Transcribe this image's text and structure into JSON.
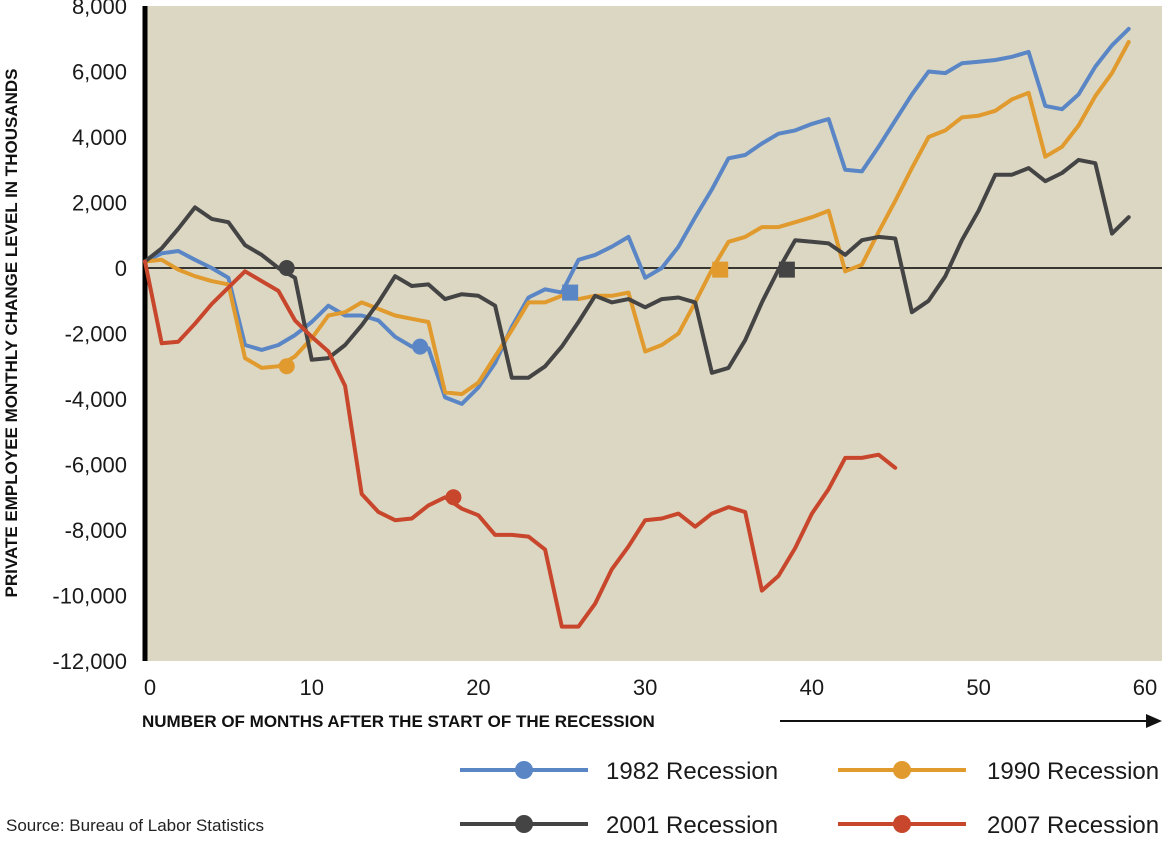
{
  "chart_data": {
    "type": "line",
    "xlabel": "NUMBER OF MONTHS AFTER THE START OF THE RECESSION",
    "ylabel": "PRIVATE EMPLOYEE MONTHLY CHANGE LEVEL IN THOUSANDS",
    "xlim": [
      0,
      61
    ],
    "ylim": [
      -12000,
      8000
    ],
    "xticks": [
      0,
      10,
      20,
      30,
      40,
      50,
      60
    ],
    "yticks": [
      8000,
      6000,
      4000,
      2000,
      0,
      -2000,
      -4000,
      -6000,
      -8000,
      -10000,
      -12000
    ],
    "ytick_labels": [
      "8,000",
      "6,000",
      "4,000",
      "2,000",
      "0",
      "-2,000",
      "-4,000",
      "-6,000",
      "-8,000",
      "-10,000",
      "-12,000"
    ],
    "xtick_labels": [
      "0",
      "10",
      "20",
      "30",
      "40",
      "50",
      "60"
    ],
    "plot_background": "#dcd7c3",
    "grid": false,
    "legend_position": "bottom",
    "source": "Source:  Bureau of Labor Statistics",
    "series": [
      {
        "name": "1982 Recession",
        "color": "#5a86c6",
        "circle_marker": [
          16.5,
          -2400
        ],
        "square_marker": [
          25.5,
          -750
        ],
        "points": [
          [
            0,
            200
          ],
          [
            1,
            450
          ],
          [
            2,
            520
          ],
          [
            3,
            250
          ],
          [
            4,
            0
          ],
          [
            5,
            -300
          ],
          [
            6,
            -2350
          ],
          [
            7,
            -2500
          ],
          [
            8,
            -2350
          ],
          [
            9,
            -2050
          ],
          [
            10,
            -1650
          ],
          [
            11,
            -1150
          ],
          [
            12,
            -1450
          ],
          [
            13,
            -1450
          ],
          [
            14,
            -1600
          ],
          [
            15,
            -2100
          ],
          [
            16,
            -2400
          ],
          [
            17,
            -2450
          ],
          [
            18,
            -3950
          ],
          [
            19,
            -4150
          ],
          [
            20,
            -3650
          ],
          [
            21,
            -2900
          ],
          [
            22,
            -1800
          ],
          [
            23,
            -900
          ],
          [
            24,
            -650
          ],
          [
            25,
            -750
          ],
          [
            26,
            250
          ],
          [
            27,
            400
          ],
          [
            28,
            650
          ],
          [
            29,
            950
          ],
          [
            30,
            -300
          ],
          [
            31,
            0
          ],
          [
            32,
            650
          ],
          [
            33,
            1550
          ],
          [
            34,
            2400
          ],
          [
            35,
            3350
          ],
          [
            36,
            3450
          ],
          [
            37,
            3800
          ],
          [
            38,
            4100
          ],
          [
            39,
            4200
          ],
          [
            40,
            4400
          ],
          [
            41,
            4550
          ],
          [
            42,
            3000
          ],
          [
            43,
            2950
          ],
          [
            44,
            3700
          ],
          [
            45,
            4500
          ],
          [
            46,
            5300
          ],
          [
            47,
            6000
          ],
          [
            48,
            5950
          ],
          [
            49,
            6250
          ],
          [
            50,
            6300
          ],
          [
            51,
            6350
          ],
          [
            52,
            6450
          ],
          [
            53,
            6600
          ],
          [
            54,
            4950
          ],
          [
            55,
            4850
          ],
          [
            56,
            5300
          ],
          [
            57,
            6150
          ],
          [
            58,
            6800
          ],
          [
            59,
            7300
          ]
        ]
      },
      {
        "name": "1990 Recession",
        "color": "#e19a2d",
        "circle_marker": [
          8.5,
          -3000
        ],
        "square_marker": [
          34.5,
          -50
        ],
        "points": [
          [
            0,
            200
          ],
          [
            1,
            250
          ],
          [
            2,
            -50
          ],
          [
            3,
            -250
          ],
          [
            4,
            -400
          ],
          [
            5,
            -500
          ],
          [
            6,
            -2750
          ],
          [
            7,
            -3050
          ],
          [
            8,
            -3000
          ],
          [
            9,
            -2700
          ],
          [
            10,
            -2150
          ],
          [
            11,
            -1450
          ],
          [
            12,
            -1350
          ],
          [
            13,
            -1050
          ],
          [
            14,
            -1250
          ],
          [
            15,
            -1450
          ],
          [
            16,
            -1550
          ],
          [
            17,
            -1650
          ],
          [
            18,
            -3800
          ],
          [
            19,
            -3850
          ],
          [
            20,
            -3500
          ],
          [
            21,
            -2700
          ],
          [
            22,
            -1900
          ],
          [
            23,
            -1050
          ],
          [
            24,
            -1050
          ],
          [
            25,
            -850
          ],
          [
            26,
            -950
          ],
          [
            27,
            -850
          ],
          [
            28,
            -850
          ],
          [
            29,
            -750
          ],
          [
            30,
            -2550
          ],
          [
            31,
            -2350
          ],
          [
            32,
            -2000
          ],
          [
            33,
            -1050
          ],
          [
            34,
            -50
          ],
          [
            35,
            800
          ],
          [
            36,
            950
          ],
          [
            37,
            1250
          ],
          [
            38,
            1250
          ],
          [
            39,
            1400
          ],
          [
            40,
            1550
          ],
          [
            41,
            1750
          ],
          [
            42,
            -100
          ],
          [
            43,
            100
          ],
          [
            44,
            1100
          ],
          [
            45,
            2050
          ],
          [
            46,
            3050
          ],
          [
            47,
            4000
          ],
          [
            48,
            4200
          ],
          [
            49,
            4600
          ],
          [
            50,
            4650
          ],
          [
            51,
            4800
          ],
          [
            52,
            5150
          ],
          [
            53,
            5350
          ],
          [
            54,
            3400
          ],
          [
            55,
            3700
          ],
          [
            56,
            4350
          ],
          [
            57,
            5250
          ],
          [
            58,
            5950
          ],
          [
            59,
            6900
          ]
        ]
      },
      {
        "name": "2001 Recession",
        "color": "#444444",
        "circle_marker": [
          8.5,
          0
        ],
        "square_marker": [
          38.5,
          -50
        ],
        "points": [
          [
            0,
            200
          ],
          [
            1,
            600
          ],
          [
            2,
            1200
          ],
          [
            3,
            1850
          ],
          [
            4,
            1500
          ],
          [
            5,
            1400
          ],
          [
            6,
            700
          ],
          [
            7,
            400
          ],
          [
            8,
            0
          ],
          [
            9,
            -300
          ],
          [
            10,
            -2800
          ],
          [
            11,
            -2750
          ],
          [
            12,
            -2350
          ],
          [
            13,
            -1750
          ],
          [
            14,
            -1050
          ],
          [
            15,
            -250
          ],
          [
            16,
            -550
          ],
          [
            17,
            -500
          ],
          [
            18,
            -950
          ],
          [
            19,
            -800
          ],
          [
            20,
            -850
          ],
          [
            21,
            -1150
          ],
          [
            22,
            -3350
          ],
          [
            23,
            -3350
          ],
          [
            24,
            -3000
          ],
          [
            25,
            -2400
          ],
          [
            26,
            -1650
          ],
          [
            27,
            -850
          ],
          [
            28,
            -1050
          ],
          [
            29,
            -950
          ],
          [
            30,
            -1200
          ],
          [
            31,
            -950
          ],
          [
            32,
            -900
          ],
          [
            33,
            -1050
          ],
          [
            34,
            -3200
          ],
          [
            35,
            -3050
          ],
          [
            36,
            -2200
          ],
          [
            37,
            -1050
          ],
          [
            38,
            -50
          ],
          [
            39,
            850
          ],
          [
            40,
            800
          ],
          [
            41,
            750
          ],
          [
            42,
            400
          ],
          [
            43,
            850
          ],
          [
            44,
            950
          ],
          [
            45,
            900
          ],
          [
            46,
            -1350
          ],
          [
            47,
            -1000
          ],
          [
            48,
            -250
          ],
          [
            49,
            850
          ],
          [
            50,
            1750
          ],
          [
            51,
            2850
          ],
          [
            52,
            2850
          ],
          [
            53,
            3050
          ],
          [
            54,
            2650
          ],
          [
            55,
            2900
          ],
          [
            56,
            3300
          ],
          [
            57,
            3200
          ],
          [
            58,
            1050
          ],
          [
            59,
            1550
          ]
        ]
      },
      {
        "name": "2007 Recession",
        "color": "#c8462b",
        "circle_marker": [
          18.5,
          -7000
        ],
        "points": [
          [
            0,
            200
          ],
          [
            1,
            -2300
          ],
          [
            2,
            -2250
          ],
          [
            3,
            -1700
          ],
          [
            4,
            -1100
          ],
          [
            5,
            -600
          ],
          [
            6,
            -100
          ],
          [
            7,
            -400
          ],
          [
            8,
            -700
          ],
          [
            9,
            -1600
          ],
          [
            10,
            -2100
          ],
          [
            11,
            -2550
          ],
          [
            12,
            -3600
          ],
          [
            13,
            -6900
          ],
          [
            14,
            -7450
          ],
          [
            15,
            -7700
          ],
          [
            16,
            -7650
          ],
          [
            17,
            -7250
          ],
          [
            18,
            -7000
          ],
          [
            19,
            -7350
          ],
          [
            20,
            -7550
          ],
          [
            21,
            -8150
          ],
          [
            22,
            -8150
          ],
          [
            23,
            -8200
          ],
          [
            24,
            -8600
          ],
          [
            25,
            -10950
          ],
          [
            26,
            -10950
          ],
          [
            27,
            -10250
          ],
          [
            28,
            -9200
          ],
          [
            29,
            -8500
          ],
          [
            30,
            -7700
          ],
          [
            31,
            -7650
          ],
          [
            32,
            -7500
          ],
          [
            33,
            -7900
          ],
          [
            34,
            -7500
          ],
          [
            35,
            -7300
          ],
          [
            36,
            -7450
          ],
          [
            37,
            -9850
          ],
          [
            38,
            -9400
          ],
          [
            39,
            -8550
          ],
          [
            40,
            -7500
          ],
          [
            41,
            -6750
          ],
          [
            42,
            -5800
          ],
          [
            43,
            -5800
          ],
          [
            44,
            -5700
          ],
          [
            45,
            -6100
          ]
        ]
      }
    ]
  }
}
